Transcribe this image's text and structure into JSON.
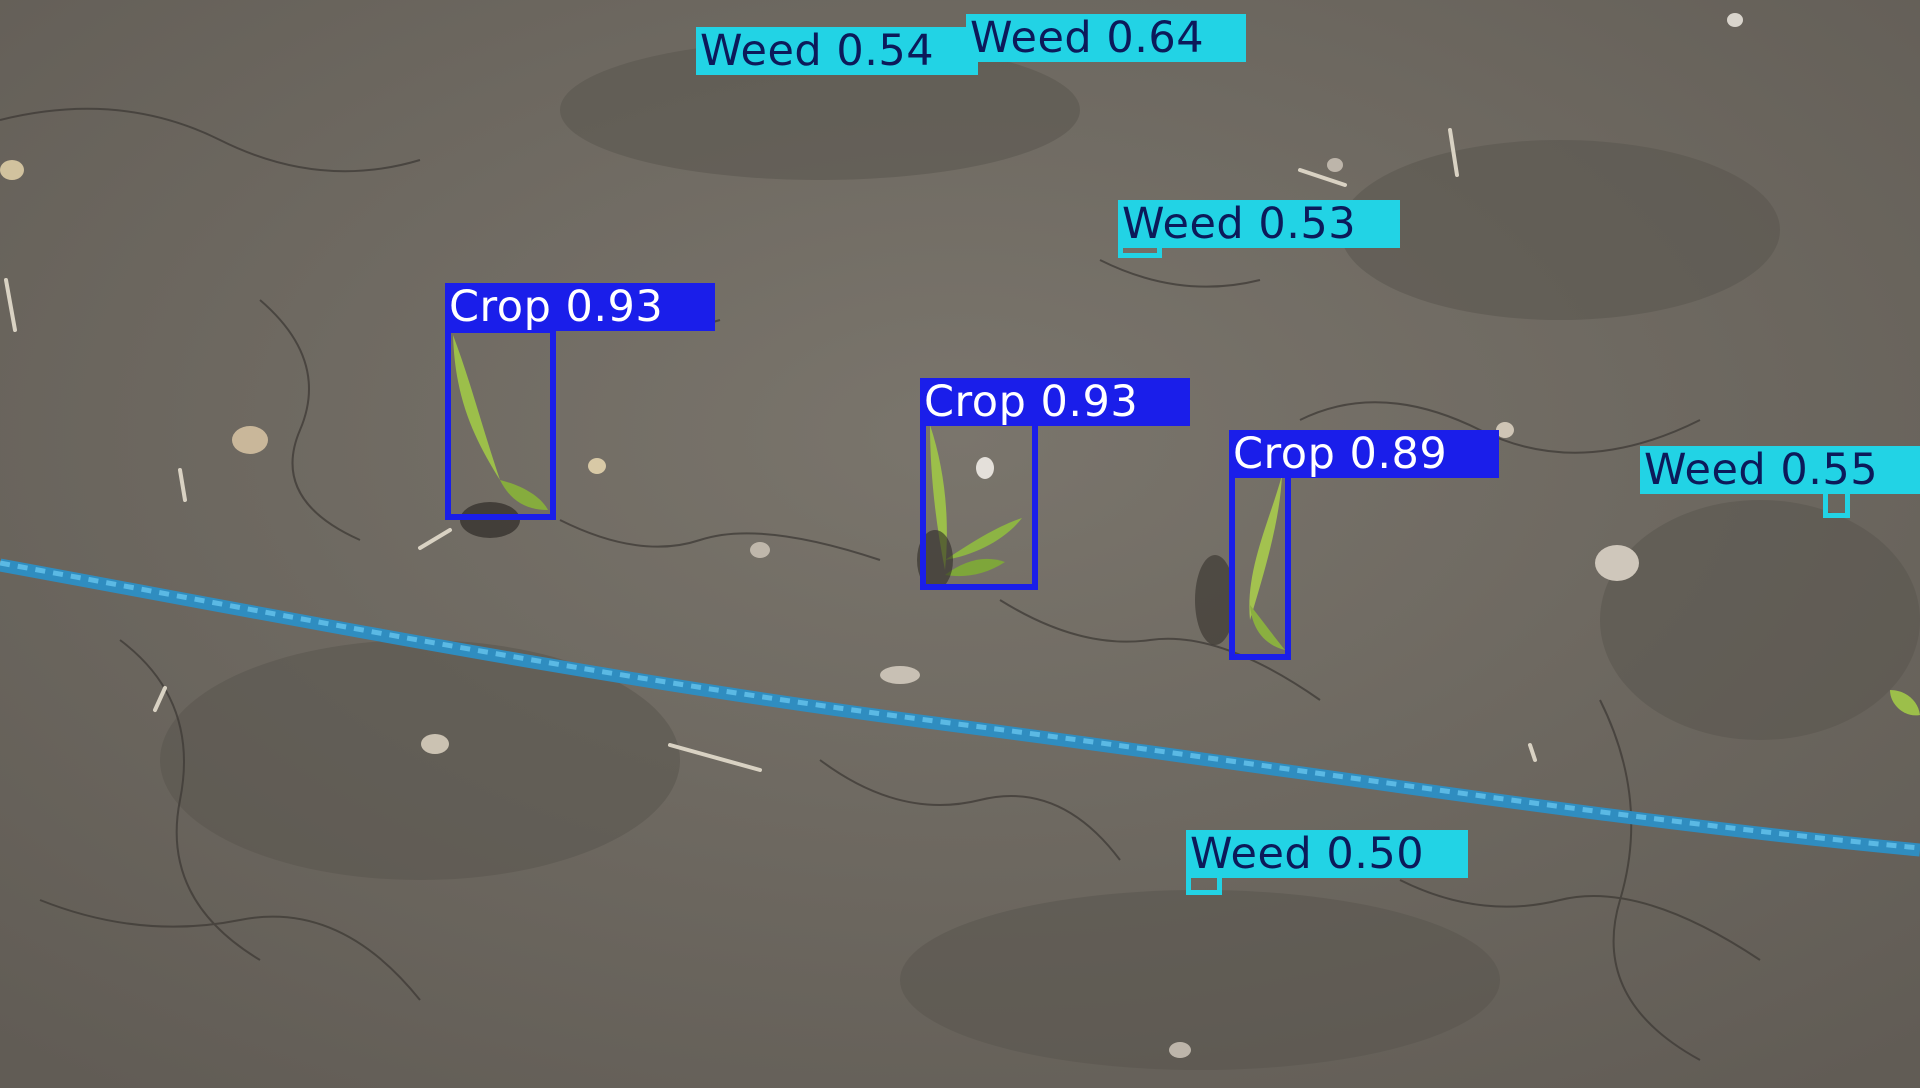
{
  "colors": {
    "crop_box": "#1a1eea",
    "crop_label_text": "#ffffff",
    "weed_box": "#22d3e5",
    "weed_label_text": "#0c1a5a",
    "soil": "#6f6a62",
    "rope": "#3a9fd0",
    "leaf": "#9cbf4a"
  },
  "classes": {
    "crop": "Crop",
    "weed": "Weed"
  },
  "detections": [
    {
      "id": "weed-1",
      "class": "weed",
      "label": "Weed 0.54",
      "confidence": 0.54
    },
    {
      "id": "weed-2",
      "class": "weed",
      "label": "Weed 0.64",
      "confidence": 0.64
    },
    {
      "id": "weed-3",
      "class": "weed",
      "label": "Weed 0.53",
      "confidence": 0.53
    },
    {
      "id": "crop-1",
      "class": "crop",
      "label": "Crop 0.93",
      "confidence": 0.93
    },
    {
      "id": "crop-2",
      "class": "crop",
      "label": "Crop 0.93",
      "confidence": 0.93
    },
    {
      "id": "crop-3",
      "class": "crop",
      "label": "Crop 0.89",
      "confidence": 0.89
    },
    {
      "id": "weed-4",
      "class": "weed",
      "label": "Weed 0.55",
      "confidence": 0.55
    },
    {
      "id": "weed-5",
      "class": "weed",
      "label": "Weed 0.50",
      "confidence": 0.5
    }
  ]
}
